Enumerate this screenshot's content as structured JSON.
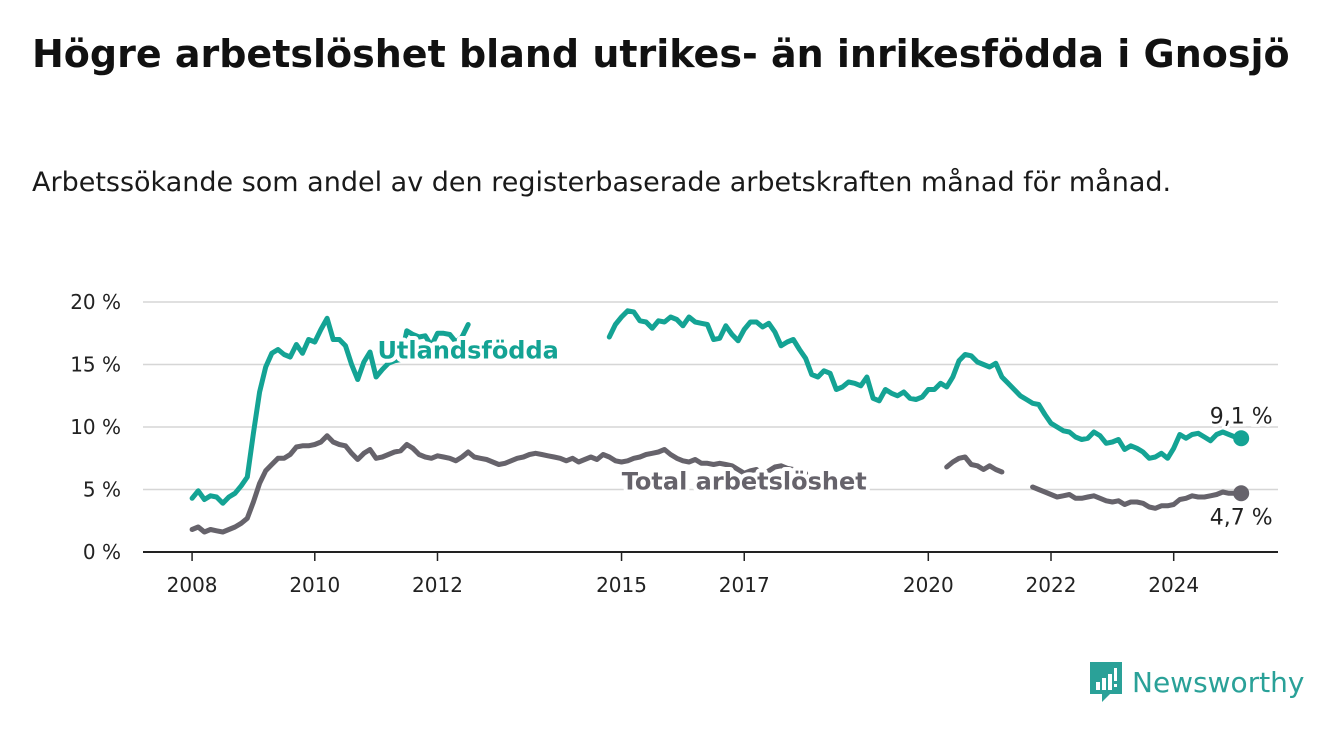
{
  "title": "Högre arbetslöshet bland utrikes- än inrikesfödda i Gnosjö",
  "subtitle": "Arbetssökande som andel av den registerbaserade arbetskraften månad för månad.",
  "brand": {
    "name": "Newsworthy",
    "icon": "newsworthy-logo-icon",
    "color": "#2aa198"
  },
  "chart_data": {
    "type": "line",
    "y_ticks": [
      "0 %",
      "5 %",
      "10 %",
      "15 %",
      "20 %"
    ],
    "y_tick_values": [
      0,
      5,
      10,
      15,
      20
    ],
    "ylim": [
      0,
      20
    ],
    "x_ticks": [
      "2008",
      "2010",
      "2012",
      "2015",
      "2017",
      "2020",
      "2022",
      "2024"
    ],
    "x_tick_values": [
      2008,
      2010,
      2012,
      2015,
      2017,
      2020,
      2022,
      2024
    ],
    "xlim": [
      2007.2,
      2025.7
    ],
    "grid": true,
    "series": [
      {
        "name": "Utlandsfödda",
        "color": "#14a394",
        "end_label": "9,1 %",
        "points": [
          [
            2008.0,
            4.3
          ],
          [
            2008.1,
            4.9
          ],
          [
            2008.2,
            4.2
          ],
          [
            2008.3,
            4.5
          ],
          [
            2008.4,
            4.4
          ],
          [
            2008.5,
            3.9
          ],
          [
            2008.6,
            4.4
          ],
          [
            2008.7,
            4.7
          ],
          [
            2008.8,
            5.3
          ],
          [
            2008.9,
            6.0
          ],
          [
            2009.0,
            9.5
          ],
          [
            2009.1,
            12.8
          ],
          [
            2009.2,
            14.8
          ],
          [
            2009.3,
            15.9
          ],
          [
            2009.4,
            16.2
          ],
          [
            2009.5,
            15.8
          ],
          [
            2009.6,
            15.6
          ],
          [
            2009.7,
            16.6
          ],
          [
            2009.8,
            15.9
          ],
          [
            2009.9,
            17.0
          ],
          [
            2010.0,
            16.8
          ],
          [
            2010.1,
            17.8
          ],
          [
            2010.2,
            18.7
          ],
          [
            2010.3,
            17.0
          ],
          [
            2010.4,
            17.0
          ],
          [
            2010.5,
            16.5
          ],
          [
            2010.6,
            15.0
          ],
          [
            2010.7,
            13.8
          ],
          [
            2010.8,
            15.2
          ],
          [
            2010.9,
            16.0
          ],
          [
            2011.0,
            14.0
          ],
          [
            2011.1,
            14.6
          ],
          [
            2011.2,
            15.1
          ],
          [
            2011.3,
            15.3
          ],
          [
            2011.4,
            15.4
          ],
          [
            2011.5,
            17.7
          ],
          [
            2011.6,
            17.4
          ],
          [
            2011.7,
            17.2
          ],
          [
            2011.8,
            17.3
          ],
          [
            2011.9,
            16.5
          ],
          [
            2012.0,
            17.5
          ],
          [
            2012.1,
            17.5
          ],
          [
            2012.2,
            17.4
          ],
          [
            2012.3,
            16.8
          ],
          [
            2012.4,
            17.2
          ],
          [
            2012.5,
            18.2
          ],
          null,
          [
            2014.8,
            17.2
          ],
          [
            2014.9,
            18.2
          ],
          [
            2015.0,
            18.8
          ],
          [
            2015.1,
            19.3
          ],
          [
            2015.2,
            19.2
          ],
          [
            2015.3,
            18.5
          ],
          [
            2015.4,
            18.4
          ],
          [
            2015.5,
            17.9
          ],
          [
            2015.6,
            18.5
          ],
          [
            2015.7,
            18.4
          ],
          [
            2015.8,
            18.8
          ],
          [
            2015.9,
            18.6
          ],
          [
            2016.0,
            18.1
          ],
          [
            2016.1,
            18.8
          ],
          [
            2016.2,
            18.4
          ],
          [
            2016.3,
            18.3
          ],
          [
            2016.4,
            18.2
          ],
          [
            2016.5,
            17.0
          ],
          [
            2016.6,
            17.1
          ],
          [
            2016.7,
            18.1
          ],
          [
            2016.8,
            17.4
          ],
          [
            2016.9,
            16.9
          ],
          [
            2017.0,
            17.8
          ],
          [
            2017.1,
            18.4
          ],
          [
            2017.2,
            18.4
          ],
          [
            2017.3,
            18.0
          ],
          [
            2017.4,
            18.3
          ],
          [
            2017.5,
            17.6
          ],
          [
            2017.6,
            16.5
          ],
          [
            2017.7,
            16.8
          ],
          [
            2017.8,
            17.0
          ],
          [
            2017.9,
            16.2
          ],
          [
            2018.0,
            15.5
          ],
          [
            2018.1,
            14.2
          ],
          [
            2018.2,
            14.0
          ],
          [
            2018.3,
            14.5
          ],
          [
            2018.4,
            14.3
          ],
          [
            2018.5,
            13.0
          ],
          [
            2018.6,
            13.2
          ],
          [
            2018.7,
            13.6
          ],
          [
            2018.8,
            13.5
          ],
          [
            2018.9,
            13.3
          ],
          [
            2019.0,
            14.0
          ],
          [
            2019.1,
            12.3
          ],
          [
            2019.2,
            12.1
          ],
          [
            2019.3,
            13.0
          ],
          [
            2019.4,
            12.7
          ],
          [
            2019.5,
            12.5
          ],
          [
            2019.6,
            12.8
          ],
          [
            2019.7,
            12.3
          ],
          [
            2019.8,
            12.2
          ],
          [
            2019.9,
            12.4
          ],
          [
            2020.0,
            13.0
          ],
          [
            2020.1,
            13.0
          ],
          [
            2020.2,
            13.5
          ],
          [
            2020.3,
            13.2
          ],
          [
            2020.4,
            14.0
          ],
          [
            2020.5,
            15.3
          ],
          [
            2020.6,
            15.8
          ],
          [
            2020.7,
            15.7
          ],
          [
            2020.8,
            15.2
          ],
          [
            2020.9,
            15.0
          ],
          [
            2021.0,
            14.8
          ],
          [
            2021.1,
            15.1
          ],
          [
            2021.2,
            14.0
          ],
          [
            2021.3,
            13.5
          ],
          [
            2021.4,
            13.0
          ],
          [
            2021.5,
            12.5
          ],
          [
            2021.6,
            12.2
          ],
          [
            2021.7,
            11.9
          ],
          [
            2021.8,
            11.8
          ],
          [
            2021.9,
            11.0
          ],
          [
            2022.0,
            10.3
          ],
          [
            2022.1,
            10.0
          ],
          [
            2022.2,
            9.7
          ],
          [
            2022.3,
            9.6
          ],
          [
            2022.4,
            9.2
          ],
          [
            2022.5,
            9.0
          ],
          [
            2022.6,
            9.1
          ],
          [
            2022.7,
            9.6
          ],
          [
            2022.8,
            9.3
          ],
          [
            2022.9,
            8.7
          ],
          [
            2023.0,
            8.8
          ],
          [
            2023.1,
            9.0
          ],
          [
            2023.2,
            8.2
          ],
          [
            2023.3,
            8.5
          ],
          [
            2023.4,
            8.3
          ],
          [
            2023.5,
            8.0
          ],
          [
            2023.6,
            7.5
          ],
          [
            2023.7,
            7.6
          ],
          [
            2023.8,
            7.9
          ],
          [
            2023.9,
            7.5
          ],
          [
            2024.0,
            8.3
          ],
          [
            2024.1,
            9.4
          ],
          [
            2024.2,
            9.1
          ],
          [
            2024.3,
            9.4
          ],
          [
            2024.4,
            9.5
          ],
          [
            2024.5,
            9.2
          ],
          [
            2024.6,
            8.9
          ],
          [
            2024.7,
            9.4
          ],
          [
            2024.8,
            9.6
          ],
          [
            2024.9,
            9.4
          ],
          [
            2025.0,
            9.2
          ],
          [
            2025.1,
            9.1
          ]
        ]
      },
      {
        "name": "Total arbetslöshet",
        "color": "#66636b",
        "end_label": "4,7 %",
        "points": [
          [
            2008.0,
            1.8
          ],
          [
            2008.1,
            2.0
          ],
          [
            2008.2,
            1.6
          ],
          [
            2008.3,
            1.8
          ],
          [
            2008.4,
            1.7
          ],
          [
            2008.5,
            1.6
          ],
          [
            2008.6,
            1.8
          ],
          [
            2008.7,
            2.0
          ],
          [
            2008.8,
            2.3
          ],
          [
            2008.9,
            2.7
          ],
          [
            2009.0,
            4.0
          ],
          [
            2009.1,
            5.5
          ],
          [
            2009.2,
            6.5
          ],
          [
            2009.3,
            7.0
          ],
          [
            2009.4,
            7.5
          ],
          [
            2009.5,
            7.5
          ],
          [
            2009.6,
            7.8
          ],
          [
            2009.7,
            8.4
          ],
          [
            2009.8,
            8.5
          ],
          [
            2009.9,
            8.5
          ],
          [
            2010.0,
            8.6
          ],
          [
            2010.1,
            8.8
          ],
          [
            2010.2,
            9.3
          ],
          [
            2010.3,
            8.8
          ],
          [
            2010.4,
            8.6
          ],
          [
            2010.5,
            8.5
          ],
          [
            2010.6,
            7.9
          ],
          [
            2010.7,
            7.4
          ],
          [
            2010.8,
            7.9
          ],
          [
            2010.9,
            8.2
          ],
          [
            2011.0,
            7.5
          ],
          [
            2011.1,
            7.6
          ],
          [
            2011.2,
            7.8
          ],
          [
            2011.3,
            8.0
          ],
          [
            2011.4,
            8.1
          ],
          [
            2011.5,
            8.6
          ],
          [
            2011.6,
            8.3
          ],
          [
            2011.7,
            7.8
          ],
          [
            2011.8,
            7.6
          ],
          [
            2011.9,
            7.5
          ],
          [
            2012.0,
            7.7
          ],
          [
            2012.1,
            7.6
          ],
          [
            2012.2,
            7.5
          ],
          [
            2012.3,
            7.3
          ],
          [
            2012.4,
            7.6
          ],
          [
            2012.5,
            8.0
          ],
          [
            2012.6,
            7.6
          ],
          [
            2012.7,
            7.5
          ],
          [
            2012.8,
            7.4
          ],
          [
            2012.9,
            7.2
          ],
          [
            2013.0,
            7.0
          ],
          [
            2013.1,
            7.1
          ],
          [
            2013.2,
            7.3
          ],
          [
            2013.3,
            7.5
          ],
          [
            2013.4,
            7.6
          ],
          [
            2013.5,
            7.8
          ],
          [
            2013.6,
            7.9
          ],
          [
            2013.7,
            7.8
          ],
          [
            2013.8,
            7.7
          ],
          [
            2013.9,
            7.6
          ],
          [
            2014.0,
            7.5
          ],
          [
            2014.1,
            7.3
          ],
          [
            2014.2,
            7.5
          ],
          [
            2014.3,
            7.2
          ],
          [
            2014.4,
            7.4
          ],
          [
            2014.5,
            7.6
          ],
          [
            2014.6,
            7.4
          ],
          [
            2014.7,
            7.8
          ],
          [
            2014.8,
            7.6
          ],
          [
            2014.9,
            7.3
          ],
          [
            2015.0,
            7.2
          ],
          [
            2015.1,
            7.3
          ],
          [
            2015.2,
            7.5
          ],
          [
            2015.3,
            7.6
          ],
          [
            2015.4,
            7.8
          ],
          [
            2015.5,
            7.9
          ],
          [
            2015.6,
            8.0
          ],
          [
            2015.7,
            8.2
          ],
          [
            2015.8,
            7.8
          ],
          [
            2015.9,
            7.5
          ],
          [
            2016.0,
            7.3
          ],
          [
            2016.1,
            7.2
          ],
          [
            2016.2,
            7.4
          ],
          [
            2016.3,
            7.1
          ],
          [
            2016.4,
            7.1
          ],
          [
            2016.5,
            7.0
          ],
          [
            2016.6,
            7.1
          ],
          [
            2016.7,
            7.0
          ],
          [
            2016.8,
            6.9
          ],
          [
            2016.9,
            6.6
          ],
          [
            2017.0,
            6.3
          ],
          [
            2017.1,
            6.5
          ],
          [
            2017.2,
            6.6
          ],
          [
            2017.3,
            6.2
          ],
          [
            2017.4,
            6.5
          ],
          [
            2017.5,
            6.8
          ],
          [
            2017.6,
            6.9
          ],
          [
            2017.7,
            6.7
          ],
          [
            2017.8,
            6.6
          ],
          [
            2017.9,
            6.5
          ],
          [
            2018.0,
            6.3
          ],
          null,
          [
            2020.3,
            6.8
          ],
          [
            2020.4,
            7.2
          ],
          [
            2020.5,
            7.5
          ],
          [
            2020.6,
            7.6
          ],
          [
            2020.7,
            7.0
          ],
          [
            2020.8,
            6.9
          ],
          [
            2020.9,
            6.6
          ],
          [
            2021.0,
            6.9
          ],
          [
            2021.1,
            6.6
          ],
          [
            2021.2,
            6.4
          ],
          null,
          [
            2021.7,
            5.2
          ],
          [
            2021.8,
            5.0
          ],
          [
            2021.9,
            4.8
          ],
          [
            2022.0,
            4.6
          ],
          [
            2022.1,
            4.4
          ],
          [
            2022.2,
            4.5
          ],
          [
            2022.3,
            4.6
          ],
          [
            2022.4,
            4.3
          ],
          [
            2022.5,
            4.3
          ],
          [
            2022.6,
            4.4
          ],
          [
            2022.7,
            4.5
          ],
          [
            2022.8,
            4.3
          ],
          [
            2022.9,
            4.1
          ],
          [
            2023.0,
            4.0
          ],
          [
            2023.1,
            4.1
          ],
          [
            2023.2,
            3.8
          ],
          [
            2023.3,
            4.0
          ],
          [
            2023.4,
            4.0
          ],
          [
            2023.5,
            3.9
          ],
          [
            2023.6,
            3.6
          ],
          [
            2023.7,
            3.5
          ],
          [
            2023.8,
            3.7
          ],
          [
            2023.9,
            3.7
          ],
          [
            2024.0,
            3.8
          ],
          [
            2024.1,
            4.2
          ],
          [
            2024.2,
            4.3
          ],
          [
            2024.3,
            4.5
          ],
          [
            2024.4,
            4.4
          ],
          [
            2024.5,
            4.4
          ],
          [
            2024.6,
            4.5
          ],
          [
            2024.7,
            4.6
          ],
          [
            2024.8,
            4.8
          ],
          [
            2024.9,
            4.7
          ],
          [
            2025.0,
            4.7
          ],
          [
            2025.1,
            4.7
          ]
        ]
      }
    ],
    "series_labels": [
      {
        "series": 0,
        "text": "Utlandsfödda",
        "x": 2012.5,
        "y": 15.5
      },
      {
        "series": 1,
        "text": "Total arbetslöshet",
        "x": 2017.0,
        "y": 5.0
      }
    ],
    "end_markers": [
      {
        "series": 0,
        "x": 2025.1,
        "y": 9.1,
        "label": "9,1 %",
        "label_pos": "above"
      },
      {
        "series": 1,
        "x": 2025.1,
        "y": 4.7,
        "label": "4,7 %",
        "label_pos": "below"
      }
    ]
  }
}
